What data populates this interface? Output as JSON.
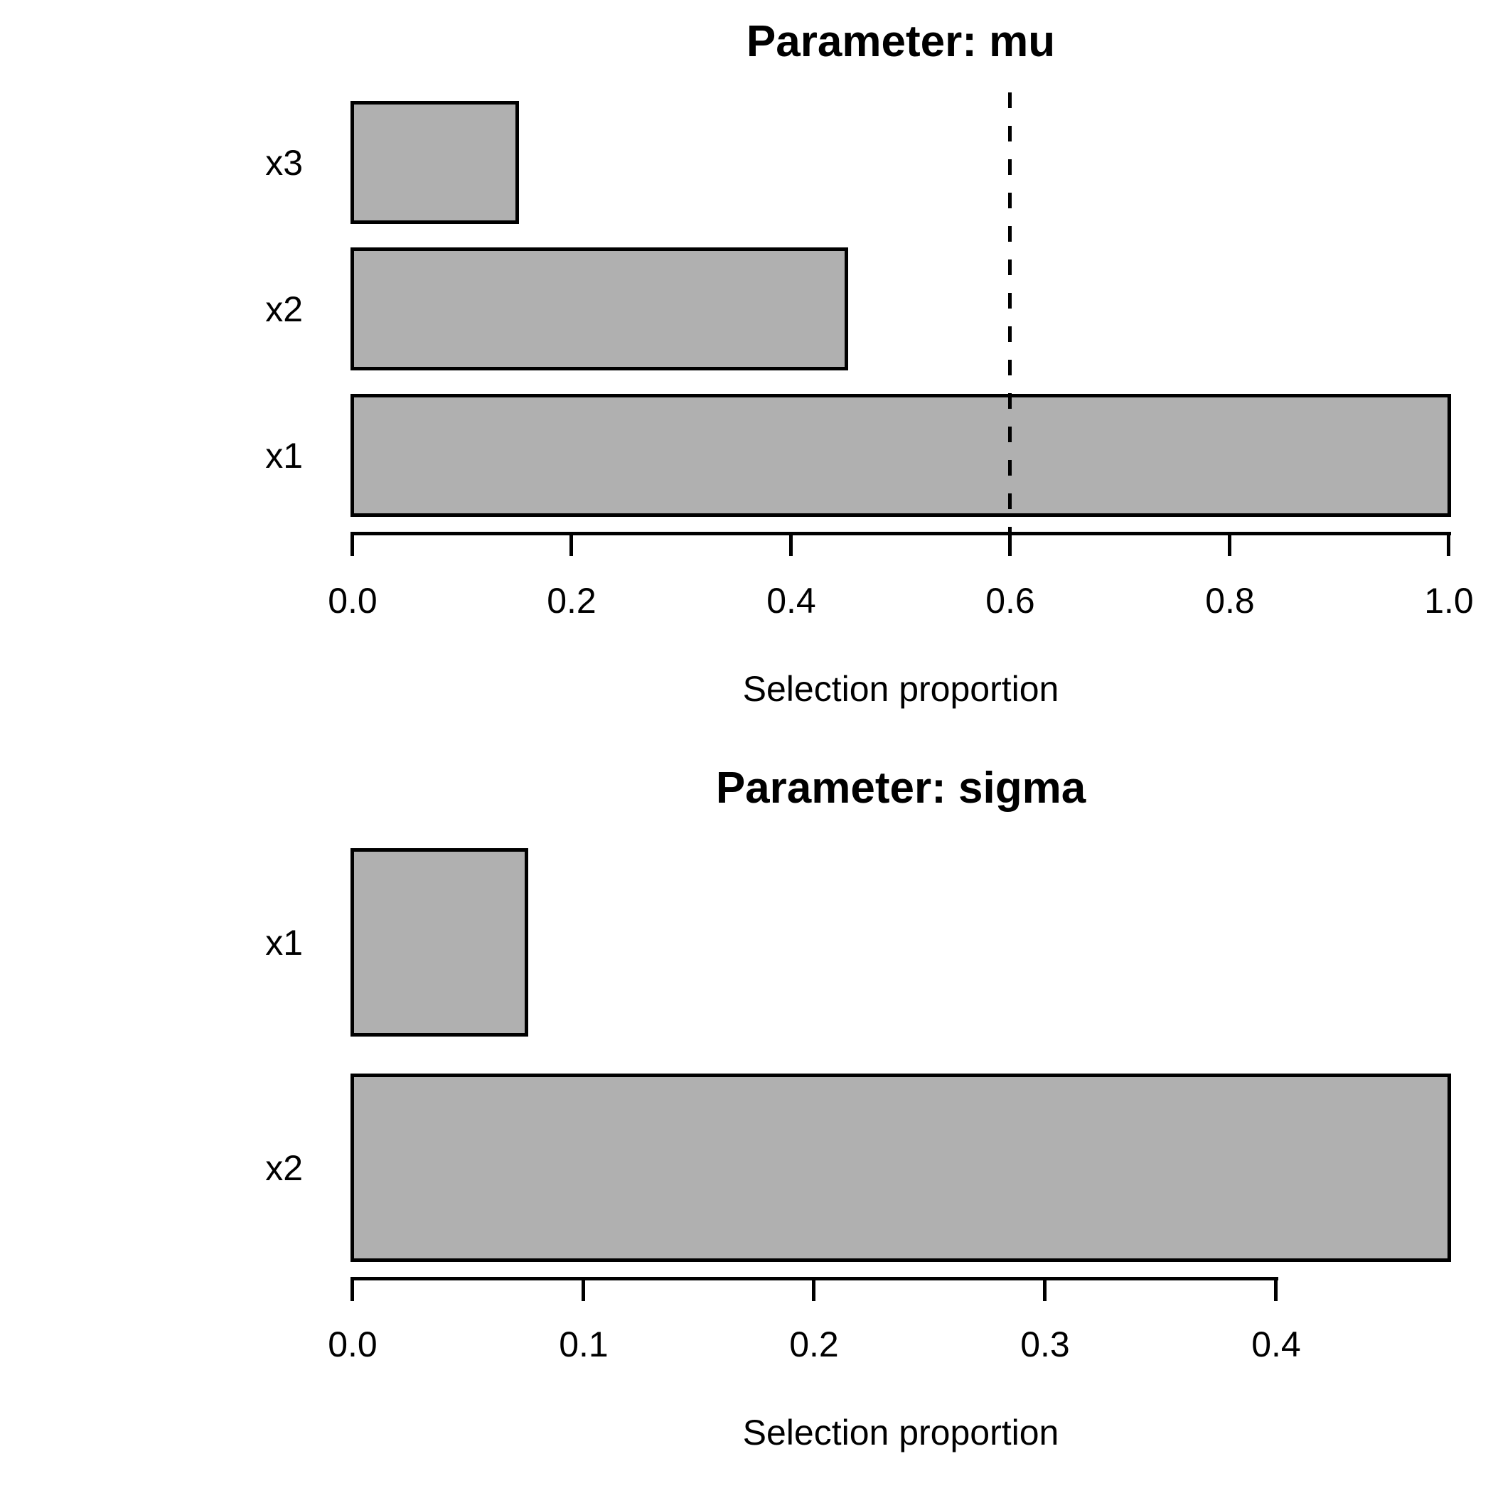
{
  "figure": {
    "background": "#ffffff",
    "text_color": "#000000"
  },
  "chart_data": [
    {
      "type": "bar",
      "orientation": "horizontal",
      "title": "Parameter: mu",
      "xlabel": "Selection proportion",
      "categories": [
        "x3",
        "x2",
        "x1"
      ],
      "values": [
        0.15,
        0.45,
        1.0
      ],
      "xticks": [
        0.0,
        0.2,
        0.4,
        0.6,
        0.8,
        1.0
      ],
      "xlim": [
        0.0,
        1.0
      ],
      "threshold": 0.6,
      "threshold_style": "dashed",
      "grid": false,
      "legend": null,
      "bar_color": "#b0b0b0",
      "bar_border_color": "#000000",
      "axis_color": "#000000"
    },
    {
      "type": "bar",
      "orientation": "horizontal",
      "title": "Parameter: sigma",
      "xlabel": "Selection proportion",
      "categories": [
        "x1",
        "x2"
      ],
      "values": [
        0.075,
        0.475
      ],
      "xticks": [
        0.0,
        0.1,
        0.2,
        0.3,
        0.4
      ],
      "xlim": [
        0.0,
        0.483
      ],
      "threshold": null,
      "threshold_style": null,
      "grid": false,
      "legend": null,
      "bar_color": "#b0b0b0",
      "bar_border_color": "#000000",
      "axis_color": "#000000"
    }
  ]
}
